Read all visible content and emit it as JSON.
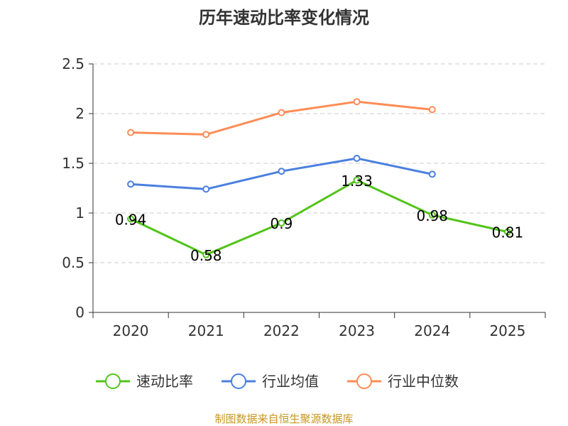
{
  "chart_data": {
    "type": "line",
    "title": "历年速动比率变化情况",
    "categories": [
      "2020",
      "2021",
      "2022",
      "2023",
      "2024",
      "2025"
    ],
    "ylim": [
      0,
      2.5
    ],
    "yticks": [
      "0",
      "0.5",
      "1",
      "1.5",
      "2",
      "2.5"
    ],
    "ytick_values": [
      0,
      0.5,
      1,
      1.5,
      2,
      2.5
    ],
    "grid": true,
    "legend_position": "bottom",
    "series": [
      {
        "name": "速动比率",
        "color": "#52c41a",
        "values": [
          0.94,
          0.58,
          0.9,
          1.33,
          0.98,
          0.81
        ],
        "labels": [
          "0.94",
          "0.58",
          "0.9",
          "1.33",
          "0.98",
          "0.81"
        ]
      },
      {
        "name": "行业均值",
        "color": "#4a7fe0",
        "values": [
          1.29,
          1.24,
          1.42,
          1.55,
          1.39,
          null
        ]
      },
      {
        "name": "行业中位数",
        "color": "#ff8c55",
        "values": [
          1.81,
          1.79,
          2.01,
          2.12,
          2.04,
          null
        ]
      }
    ]
  },
  "footer": "制图数据来自恒生聚源数据库"
}
